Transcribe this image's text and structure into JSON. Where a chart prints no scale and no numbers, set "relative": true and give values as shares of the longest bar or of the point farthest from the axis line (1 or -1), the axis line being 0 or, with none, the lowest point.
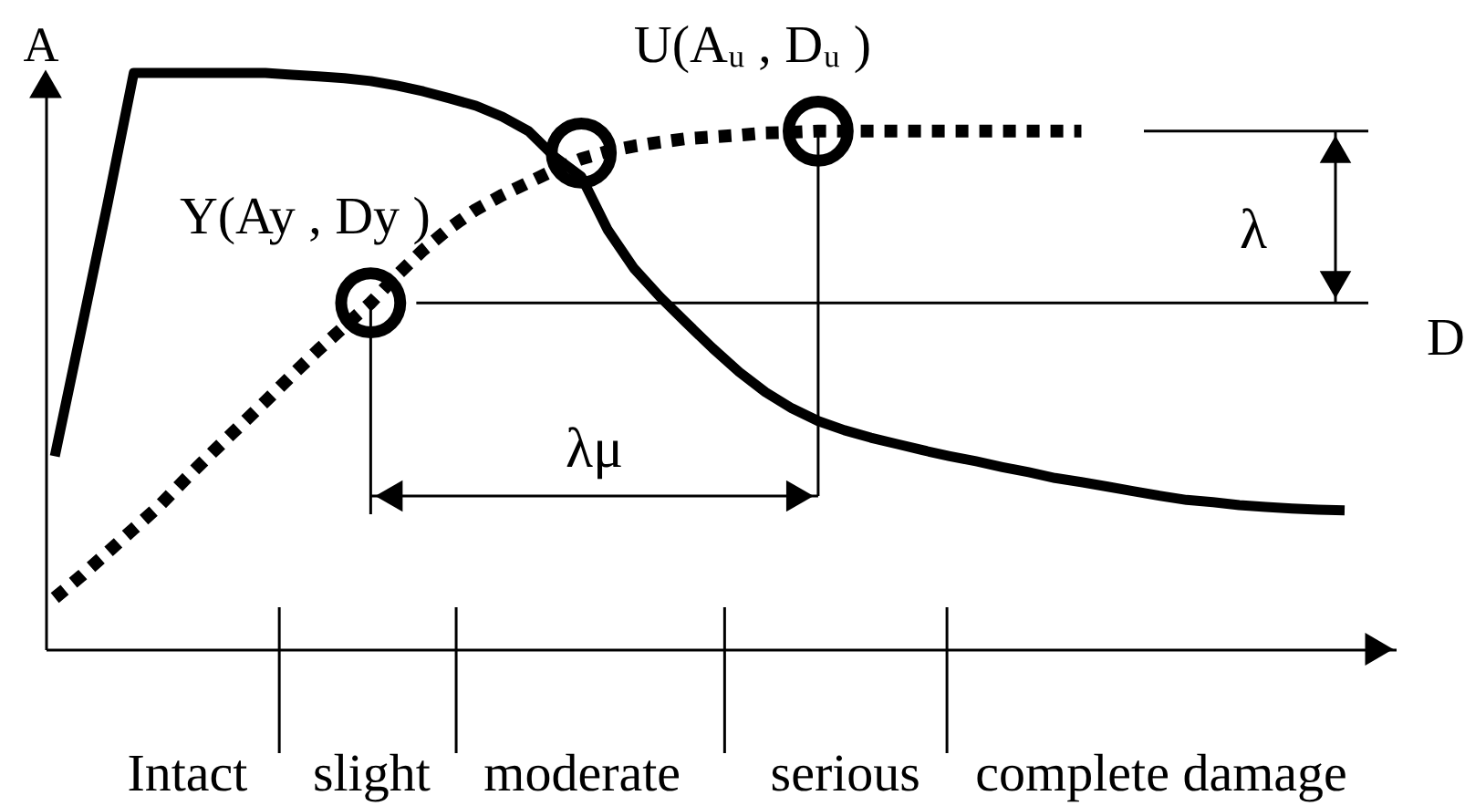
{
  "chart_data": {
    "type": "line",
    "relative": true,
    "xlabel": "D",
    "ylabel": "A",
    "categories": [
      null,
      null,
      null,
      null,
      null,
      "Intact",
      null,
      null,
      null,
      null,
      null,
      null,
      "slight",
      null,
      null,
      null,
      null,
      null,
      null,
      null,
      "moderate",
      null,
      null,
      null,
      null,
      null,
      null,
      null,
      null,
      null,
      "serious",
      null,
      null,
      null,
      null,
      null,
      null,
      null,
      null,
      null,
      null,
      null,
      "complete damage",
      null,
      null,
      null,
      null,
      null,
      null,
      null
    ],
    "series": [
      {
        "color": "#000000",
        "line_style": "solid",
        "values": [
          0.335,
          0.553,
          0.772,
          1,
          1,
          1,
          1,
          1,
          1,
          0.997,
          0.994,
          0.991,
          0.986,
          0.978,
          0.968,
          0.956,
          0.943,
          0.924,
          0.899,
          0.854,
          0.82,
          0.728,
          0.661,
          0.611,
          0.566,
          0.522,
          0.481,
          0.446,
          0.418,
          0.396,
          0.38,
          0.367,
          0.356,
          0.345,
          0.335,
          0.326,
          0.316,
          0.307,
          0.297,
          0.29,
          0.282,
          0.274,
          0.266,
          0.259,
          0.255,
          0.25,
          0.247,
          0.244,
          0.242,
          0.241
        ]
      },
      {
        "color": "#000000",
        "line_style": "dotted",
        "values": [
          0.089,
          0.127,
          0.168,
          0.209,
          0.25,
          0.297,
          0.342,
          0.386,
          0.43,
          0.475,
          0.519,
          0.56,
          0.601,
          0.649,
          0.693,
          0.731,
          0.763,
          0.788,
          0.81,
          0.832,
          0.851,
          0.864,
          0.873,
          0.88,
          0.886,
          0.889,
          0.892,
          0.896,
          0.897,
          0.899,
          0.899,
          0.899,
          0.899,
          0.899,
          0.899,
          0.899,
          0.899,
          0.899,
          0.899,
          0.899,
          null,
          null,
          null,
          null,
          null,
          null,
          null,
          null,
          null,
          null
        ]
      },
      {
        "type": "scatter",
        "name": "Y(Ay , Dy )",
        "color": "#000000",
        "marker": "circle",
        "values": [
          null,
          null,
          null,
          null,
          null,
          null,
          null,
          null,
          null,
          null,
          null,
          null,
          0.601,
          null,
          null,
          null,
          null,
          null,
          null,
          null,
          null,
          null,
          null,
          null,
          null,
          null,
          null,
          null,
          null,
          null,
          null,
          null,
          null,
          null,
          null,
          null,
          null,
          null,
          null,
          null,
          null,
          null,
          null,
          null,
          null,
          null,
          null,
          null,
          null,
          null
        ]
      },
      {
        "type": "scatter",
        "name": "U(Aᵤ , Dᵤ )",
        "color": "#000000",
        "marker": "circle",
        "values": [
          null,
          null,
          null,
          null,
          null,
          null,
          null,
          null,
          null,
          null,
          null,
          null,
          null,
          null,
          null,
          null,
          null,
          null,
          null,
          null,
          null,
          null,
          null,
          null,
          null,
          null,
          null,
          null,
          null,
          0.899,
          null,
          null,
          null,
          null,
          null,
          null,
          null,
          null,
          null,
          null,
          null,
          null,
          null,
          null,
          null,
          null,
          null,
          null,
          null,
          null
        ]
      },
      {
        "type": "scatter",
        "color": "#000000",
        "marker": "circle",
        "values": [
          null,
          null,
          null,
          null,
          null,
          null,
          null,
          null,
          null,
          null,
          null,
          null,
          null,
          null,
          null,
          null,
          null,
          null,
          null,
          null,
          0.861,
          null,
          null,
          null,
          null,
          null,
          null,
          null,
          null,
          null,
          null,
          null,
          null,
          null,
          null,
          null,
          null,
          null,
          null,
          null,
          null,
          null,
          null,
          null,
          null,
          null,
          null,
          null,
          null,
          null
        ]
      }
    ],
    "annotations": [
      "λ",
      "λμ"
    ]
  }
}
